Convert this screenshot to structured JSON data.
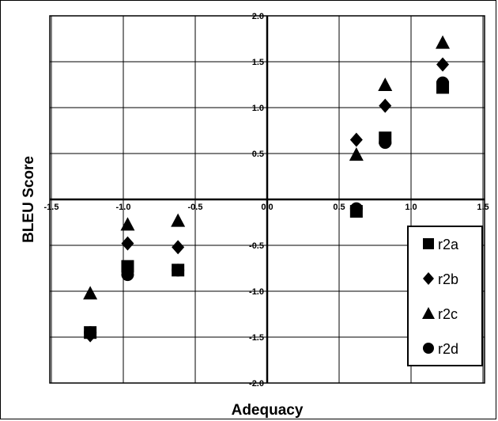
{
  "chart_data": {
    "type": "scatter",
    "title": "",
    "xlabel": "Adequacy",
    "ylabel": "BLEU Score",
    "xlim": [
      -1.6,
      1.6
    ],
    "ylim": [
      -2.0,
      2.0
    ],
    "xticks": [
      -1.5,
      -1.0,
      -0.5,
      0.0,
      0.5,
      1.0,
      1.5
    ],
    "xtick_labels": [
      "-1.5",
      "-1.0",
      "-0.5",
      "0.0",
      "0.5",
      "1.0",
      "1.5"
    ],
    "yticks": [
      2.0,
      1.5,
      1.0,
      0.5,
      0.0,
      -0.5,
      -1.0,
      -1.5,
      -2.0
    ],
    "ytick_labels": [
      "2.0",
      "1.5",
      "1.0",
      "0.5",
      "0.0",
      "-0.5",
      "-1.0",
      "-1.5",
      "-2.0"
    ],
    "grid": true,
    "legend_position": "right",
    "series": [
      {
        "name": "r2a",
        "marker": "square",
        "color": "#000000",
        "x": [
          -1.23,
          -0.97,
          -0.62,
          0.62,
          0.82,
          1.22
        ],
        "y": [
          -1.45,
          -0.73,
          -0.77,
          -0.13,
          0.67,
          1.22
        ]
      },
      {
        "name": "r2b",
        "marker": "diamond",
        "color": "#000000",
        "x": [
          -1.23,
          -0.97,
          -0.62,
          0.62,
          0.82,
          1.22
        ],
        "y": [
          -1.48,
          -0.48,
          -0.52,
          0.65,
          1.02,
          1.47
        ]
      },
      {
        "name": "r2c",
        "marker": "triangle",
        "color": "#000000",
        "x": [
          -1.23,
          -0.97,
          -0.62,
          0.62,
          0.82,
          1.22
        ],
        "y": [
          -1.02,
          -0.27,
          -0.23,
          0.49,
          1.25,
          1.71
        ]
      },
      {
        "name": "r2d",
        "marker": "circle",
        "color": "#000000",
        "x": [
          -1.23,
          -0.97,
          -0.62,
          0.62,
          0.82,
          1.22
        ],
        "y": [
          -1.45,
          -0.82,
          -0.77,
          -0.1,
          0.62,
          1.27
        ]
      }
    ]
  }
}
